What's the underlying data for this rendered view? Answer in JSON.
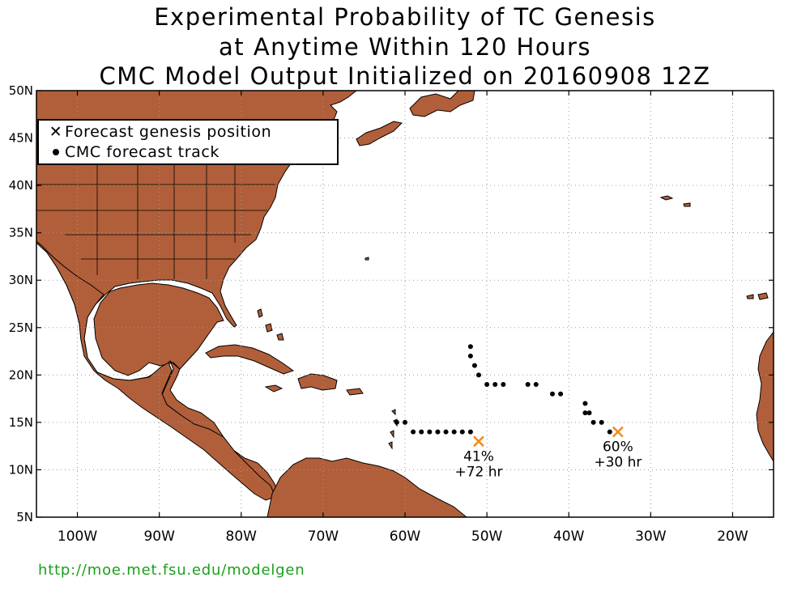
{
  "title": {
    "line1": "Experimental Probability of TC Genesis",
    "line2": "at Anytime Within 120 Hours",
    "line3": "CMC Model Output Initialized on 20160908 12Z"
  },
  "map": {
    "lon_range": [
      -105,
      -15
    ],
    "lat_range": [
      5,
      50
    ],
    "land_color": "#b15f3a",
    "ocean_color": "#ffffff",
    "grid": "dotted",
    "lat_labels": [
      "5N",
      "10N",
      "15N",
      "20N",
      "25N",
      "30N",
      "35N",
      "40N",
      "45N",
      "50N"
    ],
    "lon_labels": [
      "100W",
      "90W",
      "80W",
      "70W",
      "60W",
      "50W",
      "40W",
      "30W",
      "20W"
    ]
  },
  "legend": {
    "genesis_label": "Forecast genesis position",
    "track_label": "CMC forecast track",
    "genesis_icon": "x-mark-icon",
    "track_icon": "dot-icon"
  },
  "genesis_points": [
    {
      "lon": -51.0,
      "lat": 13.0,
      "prob": "41%",
      "lead": "+72 hr",
      "color": "#f08a24"
    },
    {
      "lon": -34.0,
      "lat": 14.0,
      "prob": "60%",
      "lead": "+30 hr",
      "color": "#f08a24"
    }
  ],
  "tracks": [
    {
      "points": [
        [
          -52,
          14
        ],
        [
          -53,
          14
        ],
        [
          -54,
          14
        ],
        [
          -55,
          14
        ],
        [
          -56,
          14
        ],
        [
          -57,
          14
        ],
        [
          -58,
          14
        ],
        [
          -59,
          14
        ],
        [
          -60,
          15
        ],
        [
          -61,
          15
        ]
      ]
    },
    {
      "points": [
        [
          -35,
          14
        ],
        [
          -36,
          15
        ],
        [
          -37,
          15
        ],
        [
          -37.5,
          16
        ],
        [
          -38,
          16
        ],
        [
          -38,
          17
        ],
        [
          -41,
          18
        ],
        [
          -42,
          18
        ],
        [
          -44,
          19
        ],
        [
          -45,
          19
        ],
        [
          -48,
          19
        ],
        [
          -49,
          19
        ],
        [
          -50,
          19
        ],
        [
          -51,
          20
        ],
        [
          -51.5,
          21
        ],
        [
          -52,
          22
        ],
        [
          -52,
          23
        ]
      ]
    }
  ],
  "footer": {
    "url": "http://moe.met.fsu.edu/modelgen"
  }
}
